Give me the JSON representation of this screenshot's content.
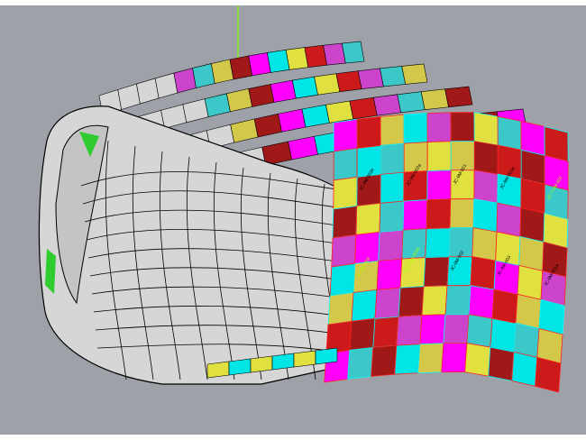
{
  "viewport": {
    "background": "#9ea2a8",
    "axis_color": "#7fff00",
    "shell_color": "#d6d6d6",
    "edge_color": "#000000"
  },
  "panel_colors": [
    "#ff00ff",
    "#00e5e5",
    "#e0e040",
    "#cc1a1a",
    "#cc44cc",
    "#3cc8c8",
    "#d4c84a",
    "#a01818"
  ],
  "panel_labels": [
    {
      "text": "JC-9M-003b",
      "dark": true
    },
    {
      "text": "JC-9M-002a",
      "dark": true
    },
    {
      "text": "JC-9M-001",
      "dark": true
    },
    {
      "text": "JC-9M-003a",
      "dark": true
    },
    {
      "text": "JC-7.5M-002",
      "dark": false
    },
    {
      "text": "JC-9M-004",
      "dark": false
    },
    {
      "text": "JC-7.5M-003b",
      "dark": false
    },
    {
      "text": "JC-9M-002",
      "dark": true
    },
    {
      "text": "JC-9M-003",
      "dark": true
    },
    {
      "text": "JC-9M-001a",
      "dark": true
    }
  ]
}
